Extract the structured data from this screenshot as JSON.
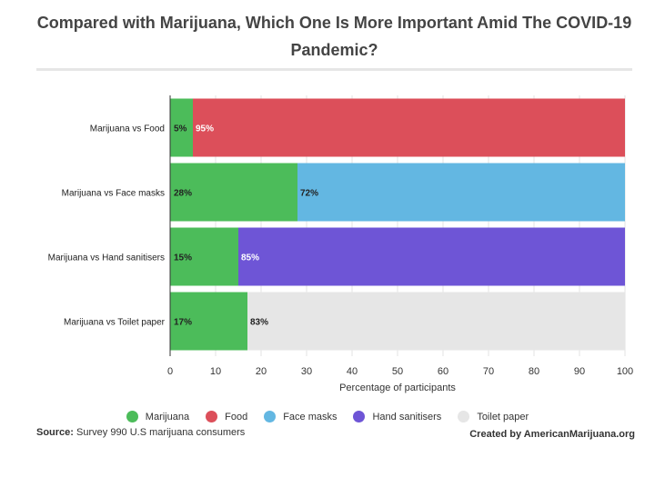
{
  "title": "Compared with Marijuana, Which One Is More Important Amid The COVID-19 Pandemic?",
  "source_label": "Source:",
  "source_text": "Survey 990 U.S marijuana consumers",
  "credit": "Created by AmericanMarijuana.org",
  "chart_data": {
    "type": "bar",
    "orientation": "horizontal",
    "stacked": true,
    "categories": [
      "Marijuana vs Food",
      "Marijuana vs Face masks",
      "Marijuana vs Hand sanitisers",
      "Marijuana vs Toilet paper"
    ],
    "marijuana": {
      "name": "Marijuana",
      "color": "#4cbc5a",
      "values": [
        5,
        28,
        15,
        17
      ],
      "labels": [
        "5%",
        "28%",
        "15%",
        "17%"
      ]
    },
    "counterparts": [
      {
        "name": "Food",
        "color": "#dc4f5a",
        "value": 95,
        "label": "95%",
        "label_color": "#ffffff"
      },
      {
        "name": "Face masks",
        "color": "#63b7e2",
        "value": 72,
        "label": "72%",
        "label_color": "#222222"
      },
      {
        "name": "Hand sanitisers",
        "color": "#6e55d6",
        "value": 85,
        "label": "85%",
        "label_color": "#ffffff"
      },
      {
        "name": "Toilet paper",
        "color": "#e6e6e6",
        "value": 83,
        "label": "83%",
        "label_color": "#222222"
      }
    ],
    "xlabel": "Percentage of participants",
    "xlim": [
      0,
      100
    ],
    "xticks": [
      0,
      10,
      20,
      30,
      40,
      50,
      60,
      70,
      80,
      90,
      100
    ],
    "legend": [
      {
        "name": "Marijuana",
        "color": "#4cbc5a"
      },
      {
        "name": "Food",
        "color": "#dc4f5a"
      },
      {
        "name": "Face masks",
        "color": "#63b7e2"
      },
      {
        "name": "Hand sanitisers",
        "color": "#6e55d6"
      },
      {
        "name": "Toilet paper",
        "color": "#e6e6e6"
      }
    ],
    "legend_position": "bottom",
    "grid": true
  }
}
